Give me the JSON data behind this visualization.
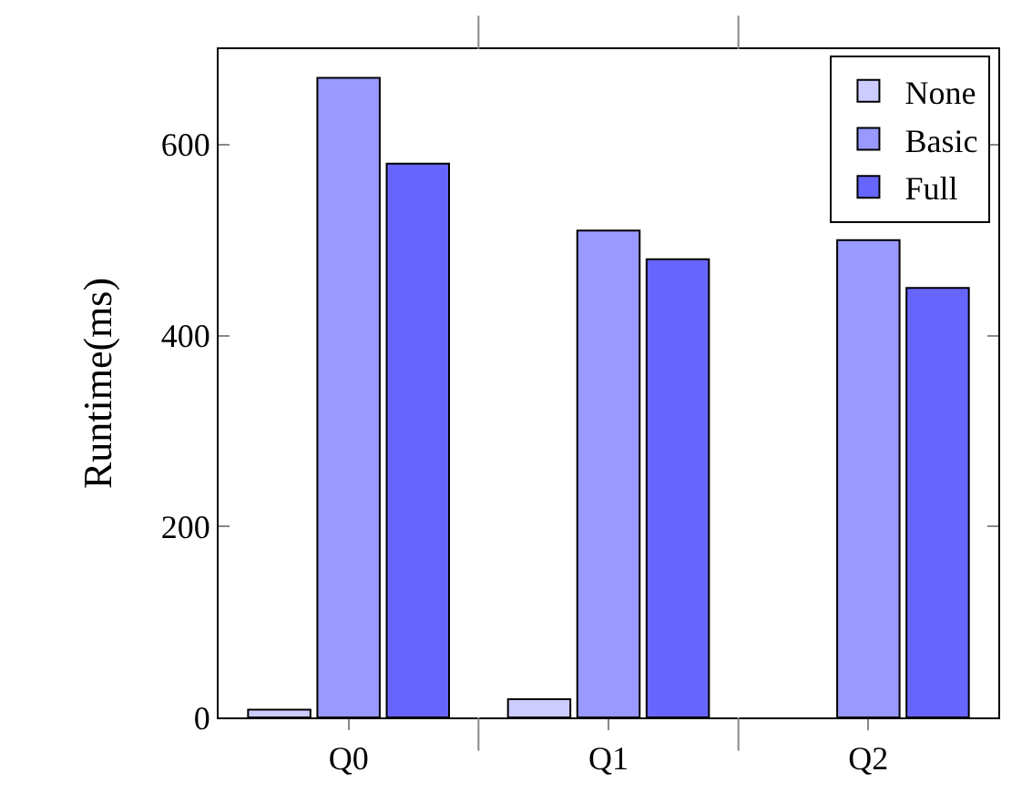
{
  "chart_data": {
    "type": "bar",
    "ylabel": "Runtime(ms)",
    "categories": [
      "Q0",
      "Q1",
      "Q2"
    ],
    "series": [
      {
        "name": "None",
        "color": "#ccccff",
        "values": [
          8,
          19,
          null
        ]
      },
      {
        "name": "Basic",
        "color": "#9999ff",
        "values": [
          670,
          510,
          500
        ]
      },
      {
        "name": "Full",
        "color": "#6666ff",
        "values": [
          580,
          480,
          450
        ]
      }
    ],
    "ylim": [
      0,
      700
    ],
    "yticks": [
      0,
      200,
      400,
      600
    ],
    "grid": false,
    "legend": "top right"
  }
}
